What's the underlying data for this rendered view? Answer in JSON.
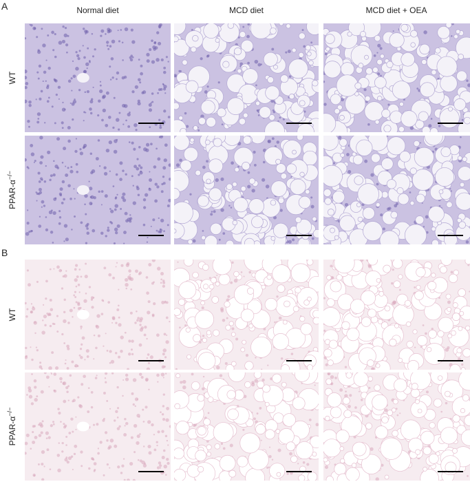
{
  "columns": [
    "Normal diet",
    "MCD diet",
    "MCD diet + OEA"
  ],
  "panels": [
    {
      "label": "A",
      "rows": [
        {
          "label": "WT"
        },
        {
          "label": "PPAR-α",
          "label_superscript": "−/−"
        }
      ]
    },
    {
      "label": "B",
      "rows": [
        {
          "label": "WT"
        },
        {
          "label": "PPAR-α",
          "label_superscript": "−/−"
        }
      ]
    }
  ]
}
